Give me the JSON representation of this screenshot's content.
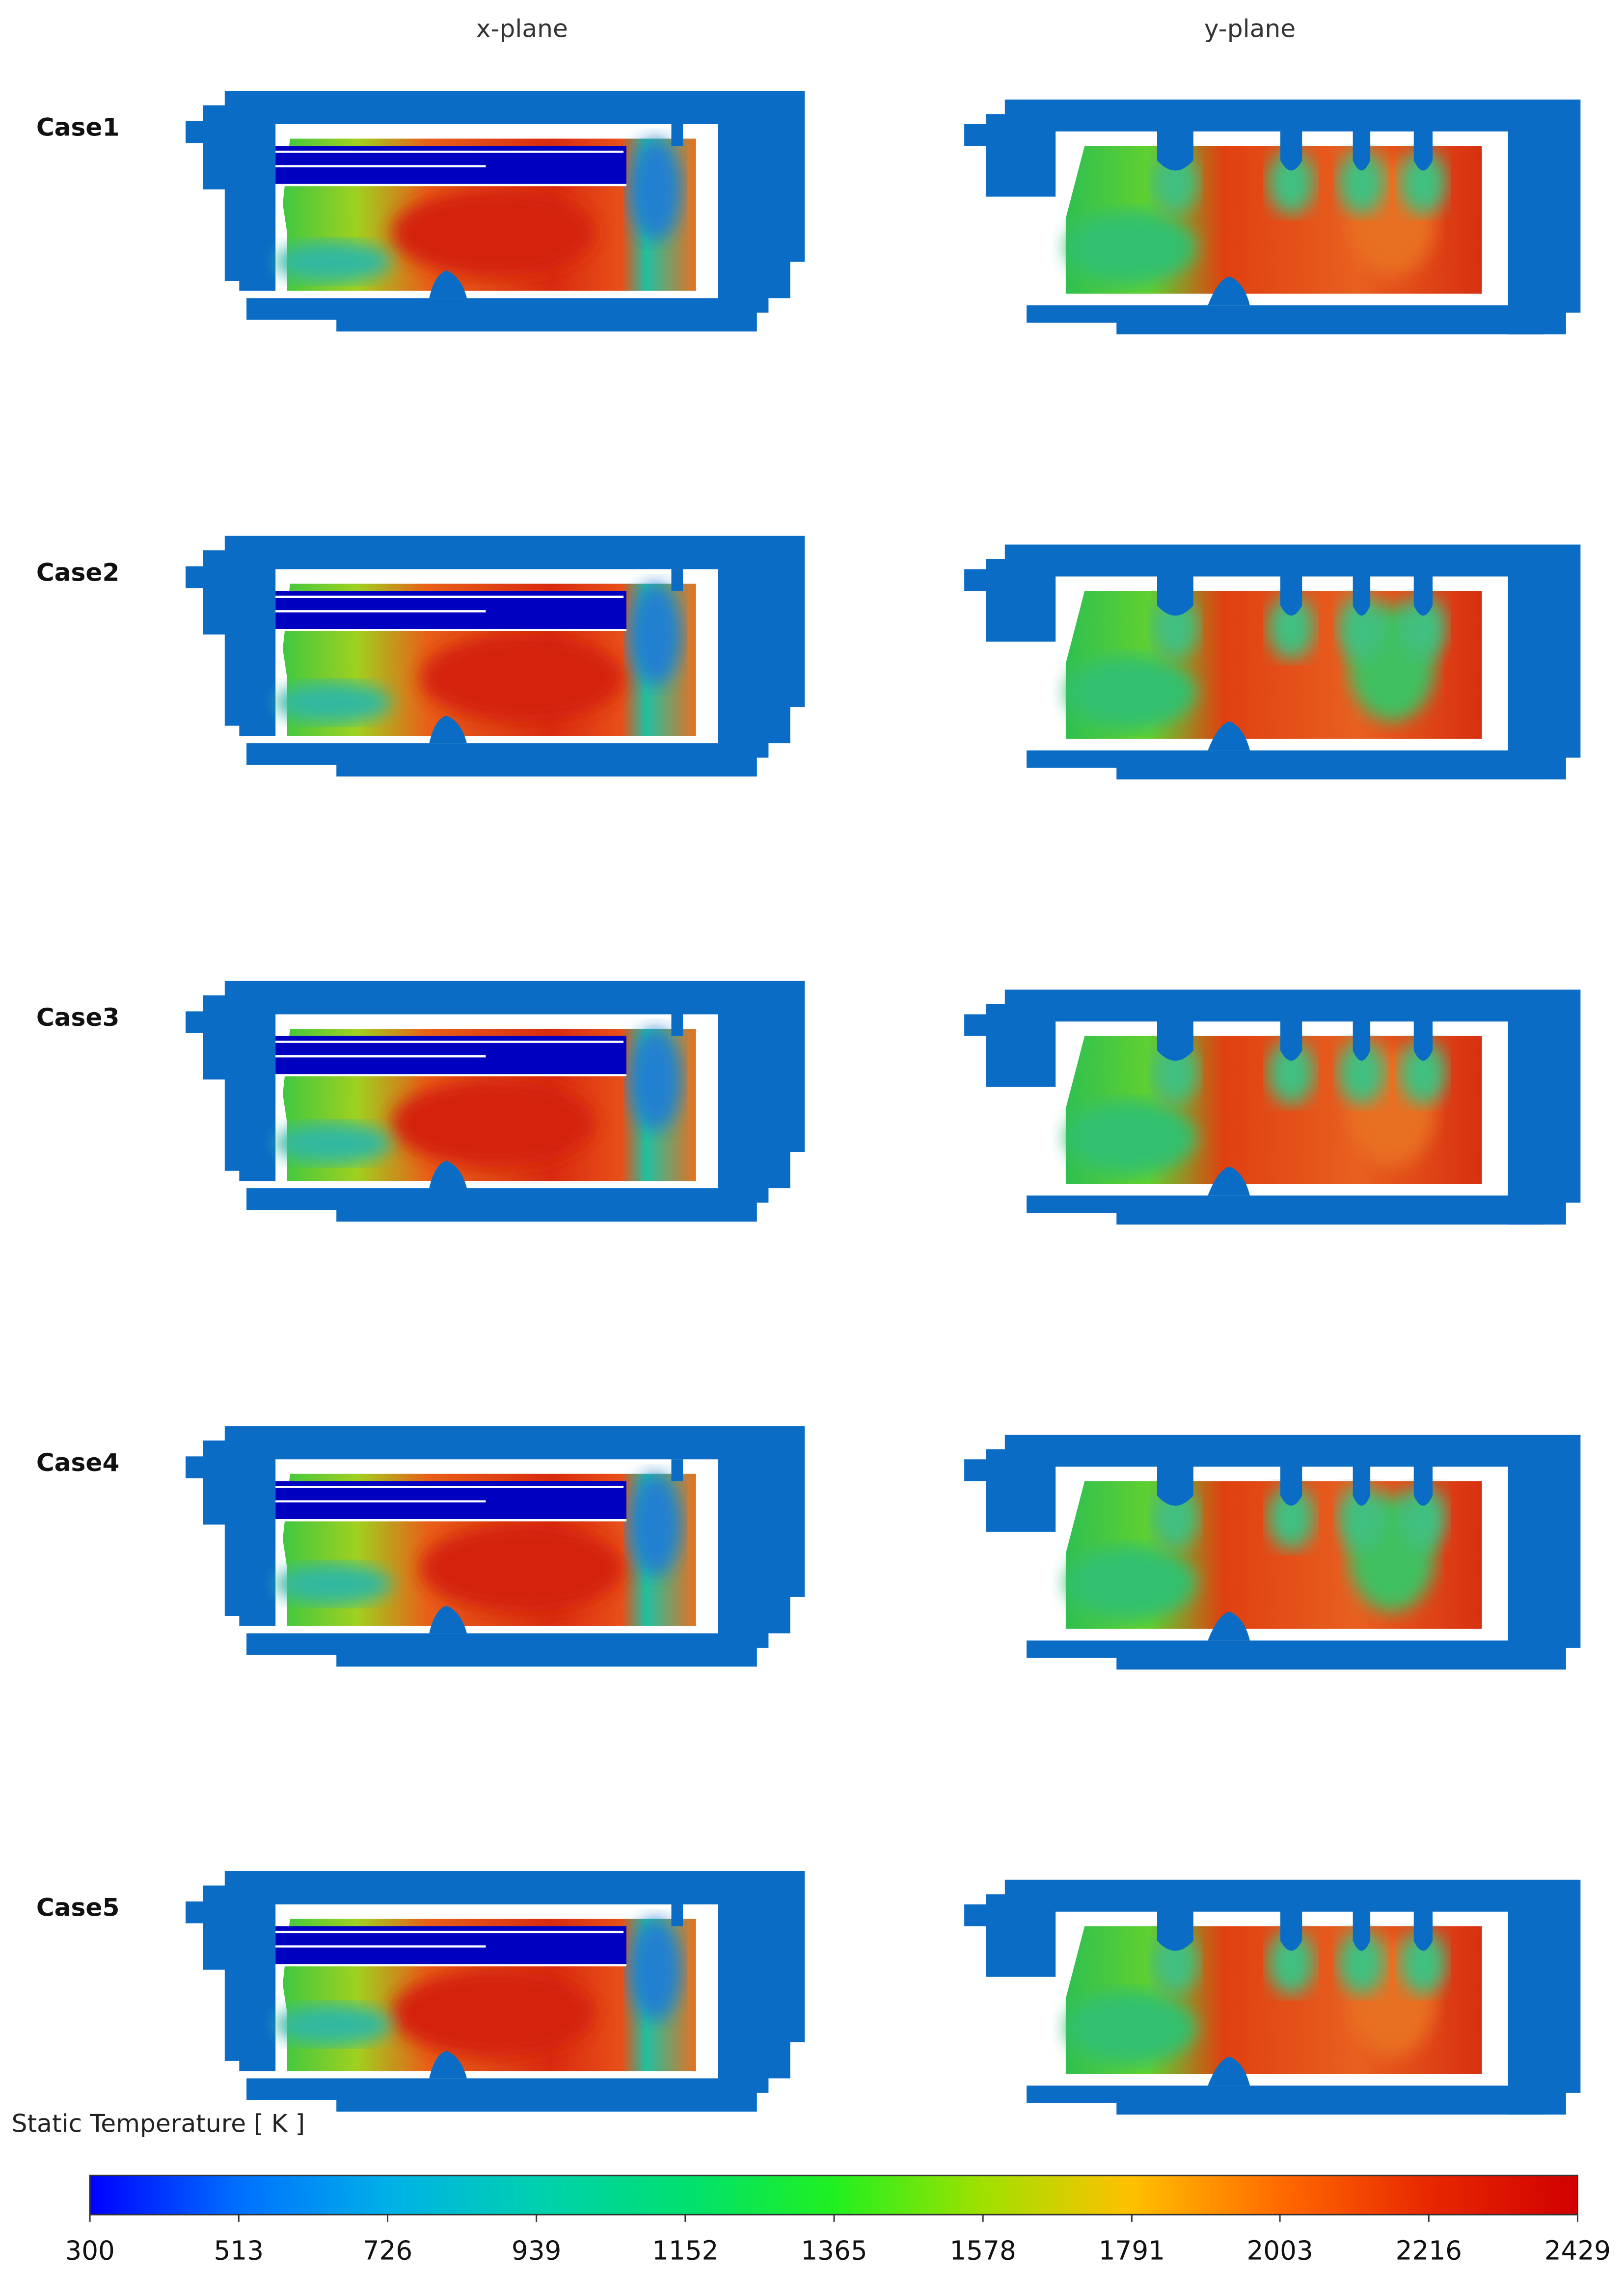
{
  "headers": {
    "columns": [
      "x-plane",
      "y-plane"
    ]
  },
  "cases": [
    "Case1",
    "Case2",
    "Case3",
    "Case4",
    "Case5"
  ],
  "colorbar": {
    "title": "Static Temperature [ K ]",
    "range": [
      300,
      2429
    ],
    "ticks": [
      300,
      513,
      726,
      939,
      1152,
      1365,
      1578,
      1791,
      2003,
      2216,
      2429
    ],
    "colors": [
      "#0000ff",
      "#0070ff",
      "#00b0e8",
      "#00d0b0",
      "#00e070",
      "#20f020",
      "#a0e000",
      "#ffc000",
      "#ff6a00",
      "#e82800",
      "#d00000"
    ]
  }
}
